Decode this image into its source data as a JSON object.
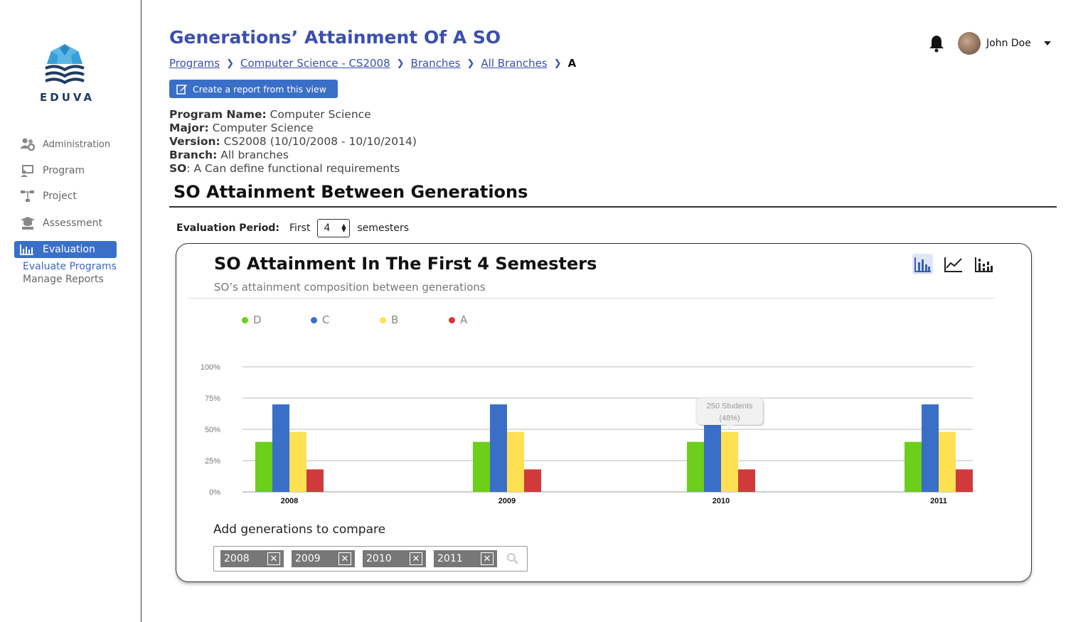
{
  "app": {
    "logo_text": "EDUVA"
  },
  "sidebar": {
    "items": [
      {
        "label": "Administration",
        "icon": "users-gear-icon"
      },
      {
        "label": "Program",
        "icon": "program-icon"
      },
      {
        "label": "Project",
        "icon": "project-tree-icon"
      },
      {
        "label": "Assessment",
        "icon": "graduation-cap-icon"
      },
      {
        "label": "Evaluation",
        "icon": "bar-chart-icon",
        "active": true
      }
    ],
    "sub_items": [
      {
        "label": "Evaluate Programs",
        "active": true
      },
      {
        "label": "Manage Reports",
        "active": false
      }
    ]
  },
  "header": {
    "title": "Generations’ Attainment Of A SO",
    "breadcrumb": [
      "Programs",
      "Computer Science - CS2008",
      "Branches",
      "All Branches",
      "A"
    ],
    "report_button": "Create a report from this view",
    "user_name": "John Doe"
  },
  "program_info": {
    "program_name_label": "Program Name:",
    "program_name": " Computer Science",
    "major_label": "Major:",
    "major": " Computer Science",
    "version_label": "Version:",
    "version": " CS2008 (10/10/2008 - 10/10/2014)",
    "branch_label": "Branch:",
    "branch": " All branches",
    "so_label": "SO",
    "so": ": A  Can define functional requirements"
  },
  "section": {
    "title": "SO Attainment Between Generations"
  },
  "evaluation_period": {
    "label": "Evaluation Period:",
    "prefix": "First",
    "value": "4",
    "suffix": "semesters"
  },
  "card": {
    "title": "SO Attainment In The First 4 Semesters",
    "subtitle": "SO’s attainment composition between generations",
    "compare_label": "Add generations to compare",
    "tags": [
      "2008",
      "2009",
      "2010",
      "2011"
    ]
  },
  "chart_data": {
    "type": "bar",
    "categories": [
      "2008",
      "2009",
      "2010",
      "2011"
    ],
    "series": [
      {
        "name": "D",
        "color": "#6ccf1a",
        "values": [
          40,
          40,
          40,
          40
        ]
      },
      {
        "name": "C",
        "color": "#3a6fc8",
        "values": [
          70,
          70,
          55,
          70
        ]
      },
      {
        "name": "B",
        "color": "#fde153",
        "values": [
          48,
          48,
          48,
          48
        ]
      },
      {
        "name": "A",
        "color": "#d13a3a",
        "values": [
          18,
          18,
          18,
          18
        ]
      }
    ],
    "ylim": [
      0,
      100
    ],
    "yticks": [
      "0%",
      "25%",
      "50%",
      "75%",
      "100%"
    ],
    "grid": true,
    "legend_position": "top-left",
    "tooltip": {
      "category": "2010",
      "series": "B",
      "line1": "250 Students",
      "line2": "(48%)"
    }
  }
}
